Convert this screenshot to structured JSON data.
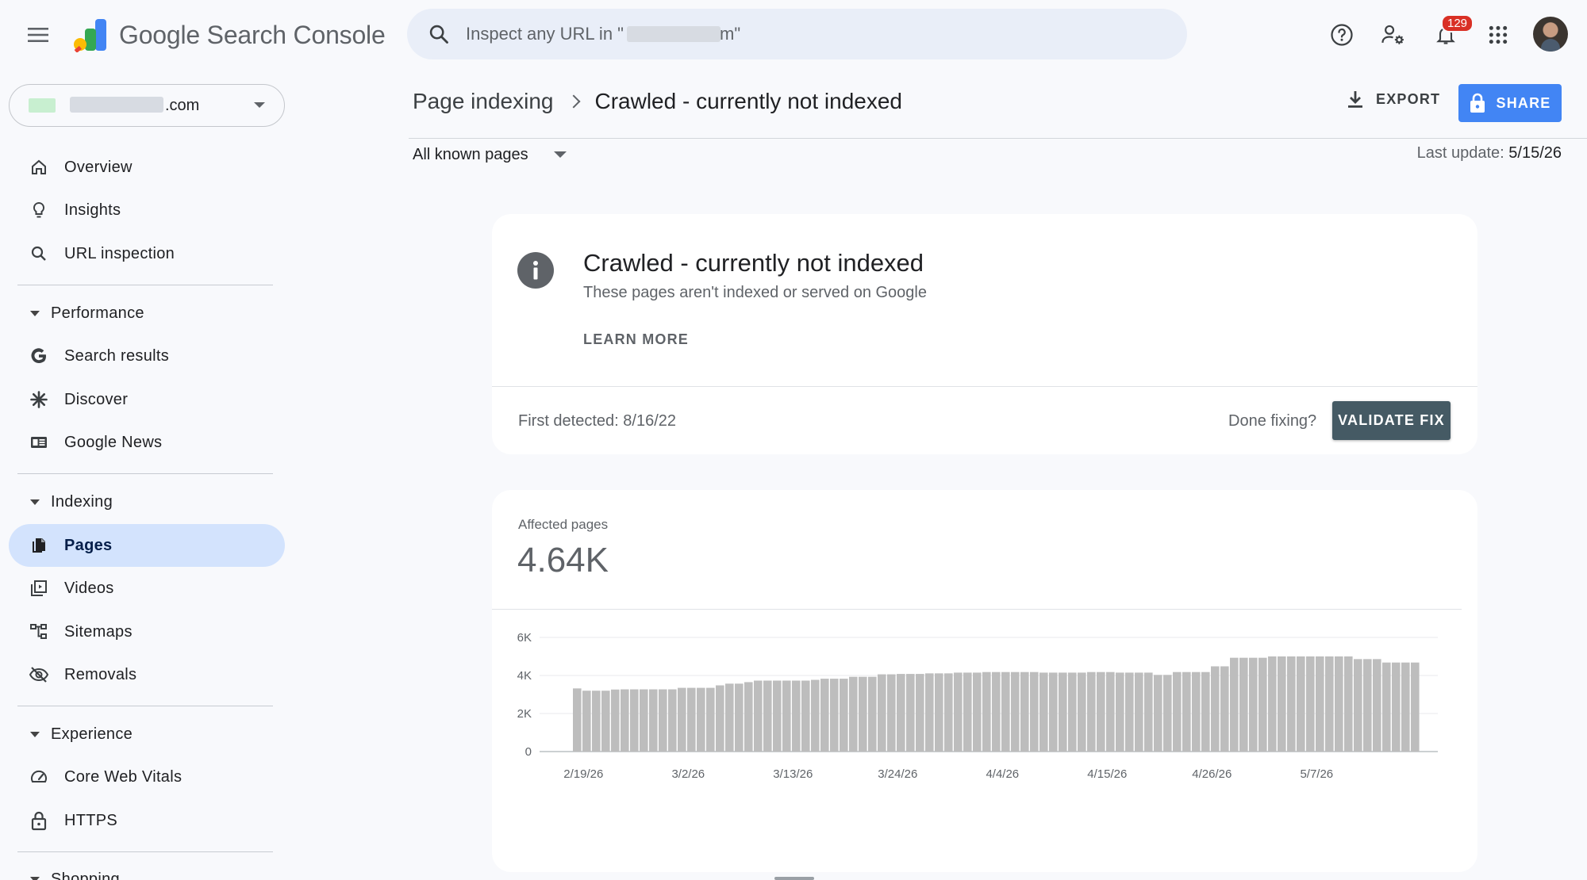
{
  "app": {
    "title": "Google Search Console",
    "search_placeholder": "Inspect any URL in \"               .com\"",
    "notifications_count": "129"
  },
  "property": {
    "suffix": ".com"
  },
  "sidebar": {
    "top_items": [
      {
        "label": "Overview",
        "icon": "home-icon"
      },
      {
        "label": "Insights",
        "icon": "lightbulb-icon"
      },
      {
        "label": "URL inspection",
        "icon": "search-icon"
      }
    ],
    "sections": [
      {
        "label": "Performance",
        "items": [
          {
            "label": "Search results",
            "icon": "google-g-icon"
          },
          {
            "label": "Discover",
            "icon": "asterisk-icon"
          },
          {
            "label": "Google News",
            "icon": "news-icon"
          }
        ]
      },
      {
        "label": "Indexing",
        "items": [
          {
            "label": "Pages",
            "icon": "pages-icon",
            "active": true
          },
          {
            "label": "Videos",
            "icon": "video-icon"
          },
          {
            "label": "Sitemaps",
            "icon": "sitemap-icon"
          },
          {
            "label": "Removals",
            "icon": "eye-off-icon"
          }
        ]
      },
      {
        "label": "Experience",
        "items": [
          {
            "label": "Core Web Vitals",
            "icon": "gauge-icon"
          },
          {
            "label": "HTTPS",
            "icon": "lock-icon"
          }
        ]
      },
      {
        "label": "Shopping",
        "items": []
      }
    ]
  },
  "header": {
    "breadcrumb_parent": "Page indexing",
    "breadcrumb_current": "Crawled - currently not indexed",
    "export_label": "EXPORT",
    "share_label": "SHARE",
    "filter_label": "All known pages",
    "last_update_label": "Last update:",
    "last_update_value": "5/15/26"
  },
  "issue": {
    "title": "Crawled - currently not indexed",
    "subtitle": "These pages aren't indexed or served on Google",
    "learn_more": "LEARN MORE",
    "first_detected": "First detected: 8/16/22",
    "done_fixing": "Done fixing?",
    "validate_label": "VALIDATE FIX"
  },
  "affected": {
    "label": "Affected pages",
    "value": "4.64K"
  },
  "colors": {
    "accent": "#4285f4",
    "bar": "#bdbdbd",
    "active_nav": "#d3e3fd",
    "validate": "#455a64"
  },
  "chart_data": {
    "type": "bar",
    "ylim": [
      0,
      6000
    ],
    "yticks": [
      {
        "v": 0,
        "label": "0"
      },
      {
        "v": 2000,
        "label": "2K"
      },
      {
        "v": 4000,
        "label": "4K"
      },
      {
        "v": 6000,
        "label": "6K"
      }
    ],
    "x_start": "2026-02-19",
    "xtick_labels": [
      {
        "label": "2/19/26",
        "index": 0
      },
      {
        "label": "3/2/26",
        "index": 11
      },
      {
        "label": "3/13/26",
        "index": 22
      },
      {
        "label": "3/24/26",
        "index": 33
      },
      {
        "label": "4/4/26",
        "index": 44
      },
      {
        "label": "4/15/26",
        "index": 55
      },
      {
        "label": "4/26/26",
        "index": 66
      },
      {
        "label": "5/7/26",
        "index": 77
      }
    ],
    "values": [
      3320,
      3200,
      3200,
      3200,
      3260,
      3270,
      3270,
      3270,
      3270,
      3270,
      3270,
      3350,
      3350,
      3350,
      3350,
      3480,
      3570,
      3570,
      3650,
      3730,
      3730,
      3730,
      3730,
      3730,
      3730,
      3770,
      3830,
      3830,
      3830,
      3930,
      3930,
      3930,
      4060,
      4060,
      4080,
      4080,
      4080,
      4110,
      4110,
      4110,
      4150,
      4150,
      4150,
      4180,
      4180,
      4180,
      4180,
      4180,
      4180,
      4150,
      4150,
      4150,
      4150,
      4150,
      4180,
      4180,
      4180,
      4150,
      4150,
      4150,
      4150,
      4030,
      4030,
      4180,
      4180,
      4180,
      4180,
      4480,
      4480,
      4930,
      4930,
      4930,
      4930,
      5000,
      5000,
      5000,
      5000,
      5000,
      5000,
      5000,
      5000,
      5000,
      4860,
      4860,
      4860,
      4680,
      4680,
      4680,
      4680
    ]
  }
}
